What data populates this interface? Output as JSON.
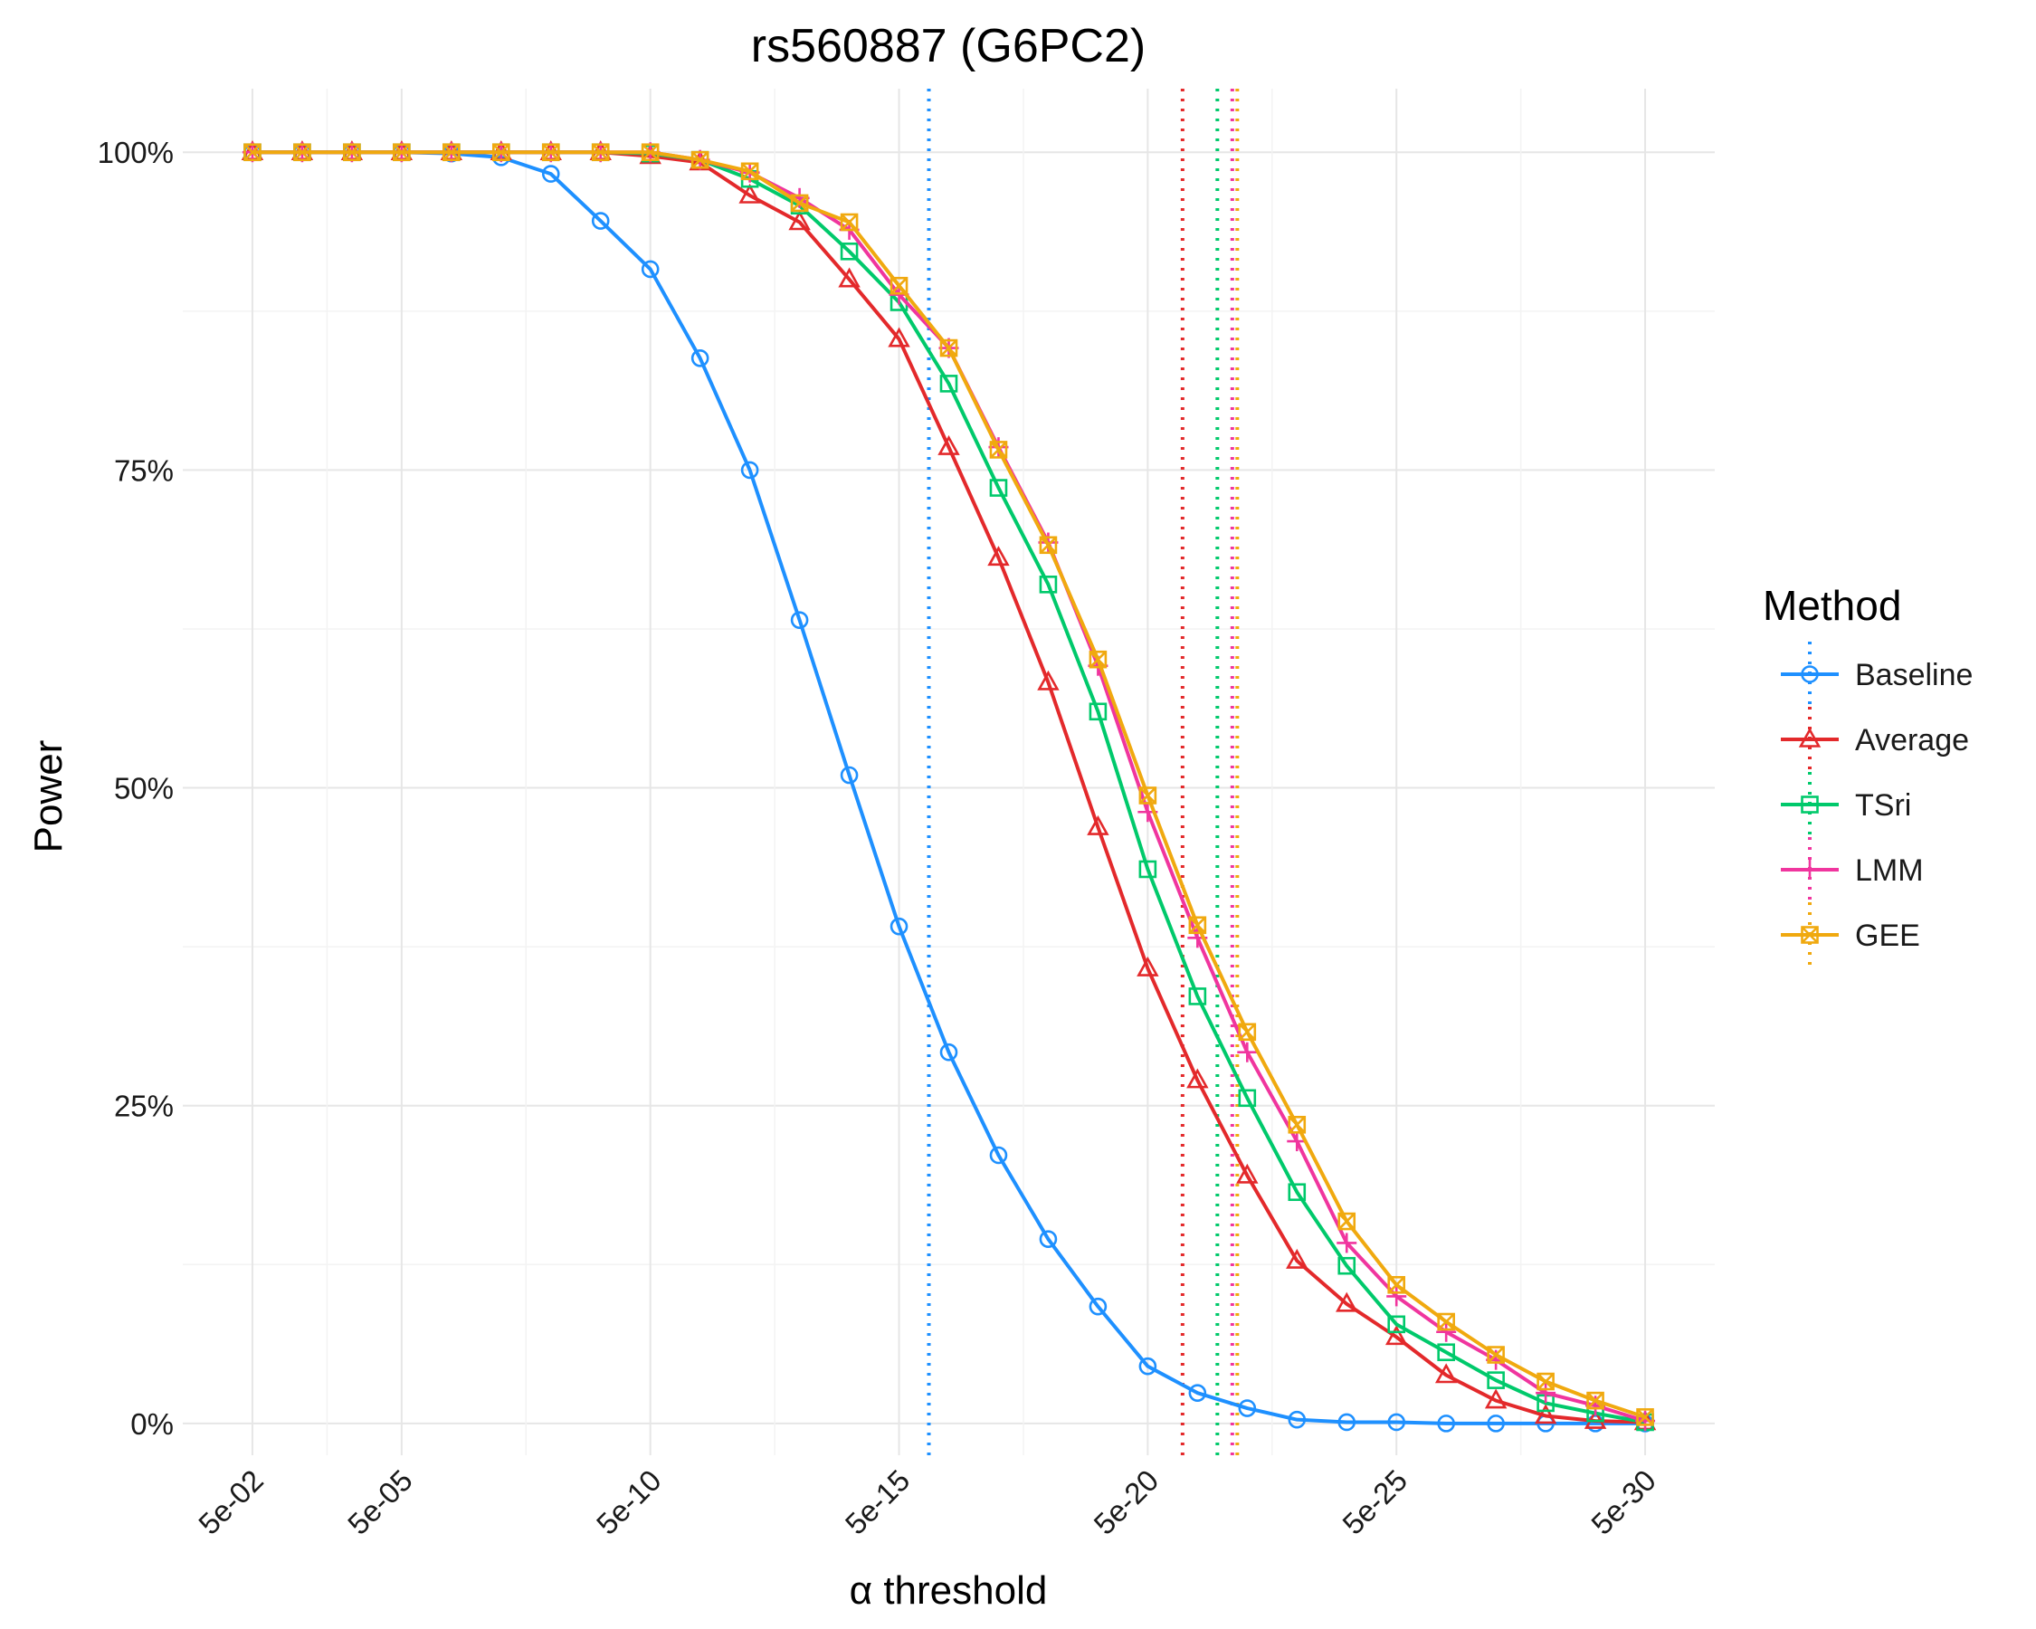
{
  "chart_data": {
    "type": "line",
    "title": "rs560887 (G6PC2)",
    "xlabel_symbol": "α",
    "xlabel": "threshold",
    "ylabel": "Power",
    "x_exponents": [
      2,
      3,
      4,
      5,
      6,
      7,
      8,
      9,
      10,
      11,
      12,
      13,
      14,
      15,
      16,
      17,
      18,
      19,
      20,
      21,
      22,
      23,
      24,
      25,
      26,
      27,
      28,
      29,
      30
    ],
    "x_tick_labels": [
      "5e-02",
      "5e-05",
      "5e-10",
      "5e-15",
      "5e-20",
      "5e-25",
      "5e-30"
    ],
    "x_tick_exponents": [
      2,
      5,
      10,
      15,
      20,
      25,
      30
    ],
    "y_tick_labels": [
      "0%",
      "25%",
      "50%",
      "75%",
      "100%"
    ],
    "y_tick_values": [
      0,
      25,
      50,
      75,
      100
    ],
    "ylim": [
      -2.5,
      105
    ],
    "grid": true,
    "legend_title": "Method",
    "legend_position": "right",
    "series": [
      {
        "name": "Baseline",
        "color": "#1e90ff",
        "marker": "circle",
        "threshold_exponent": 15.6,
        "values": [
          100,
          100,
          100,
          100,
          99.9,
          99.6,
          98.3,
          94.6,
          90.8,
          83.8,
          75,
          63.2,
          51,
          39.1,
          29.2,
          21.1,
          14.5,
          9.2,
          4.5,
          2.4,
          1.2,
          0.3,
          0.1,
          0.1,
          0,
          0,
          0,
          0,
          0
        ]
      },
      {
        "name": "Average",
        "color": "#e3292b",
        "marker": "triangle",
        "threshold_exponent": 20.7,
        "values": [
          100,
          100,
          100,
          100,
          100,
          100,
          100,
          100,
          99.7,
          99.2,
          96.6,
          94.5,
          90,
          85.3,
          76.8,
          68.1,
          58.3,
          46.9,
          35.8,
          27,
          19.5,
          12.8,
          9.4,
          6.8,
          3.8,
          1.8,
          0.6,
          0.2,
          0.1
        ]
      },
      {
        "name": "TSri",
        "color": "#00c96b",
        "marker": "square",
        "threshold_exponent": 21.4,
        "values": [
          100,
          100,
          100,
          100,
          100,
          100,
          100,
          100,
          99.9,
          99.4,
          97.9,
          95.8,
          92.2,
          88.2,
          81.8,
          73.6,
          66,
          56,
          43.6,
          33.6,
          25.6,
          18.2,
          12.4,
          7.8,
          5.6,
          3.4,
          1.6,
          0.8,
          0.1
        ]
      },
      {
        "name": "LMM",
        "color": "#f0359e",
        "marker": "plus",
        "threshold_exponent": 21.7,
        "values": [
          100,
          100,
          100,
          100,
          100,
          100,
          100,
          100,
          100,
          99.4,
          98.4,
          96.4,
          93.9,
          88.8,
          84.6,
          76.8,
          69.3,
          59.6,
          48.1,
          38.2,
          29.2,
          22.2,
          14.2,
          10,
          7.2,
          5,
          2.4,
          1.4,
          0.2
        ]
      },
      {
        "name": "GEE",
        "color": "#f0a90f",
        "marker": "squarex",
        "threshold_exponent": 21.8,
        "values": [
          100,
          100,
          100,
          100,
          100,
          100,
          100,
          100,
          100,
          99.4,
          98.5,
          96,
          94.5,
          89.5,
          84.6,
          76.6,
          69.1,
          60.1,
          49.4,
          39.2,
          30.8,
          23.5,
          15.9,
          10.9,
          8,
          5.4,
          3.3,
          1.8,
          0.5
        ]
      }
    ]
  }
}
